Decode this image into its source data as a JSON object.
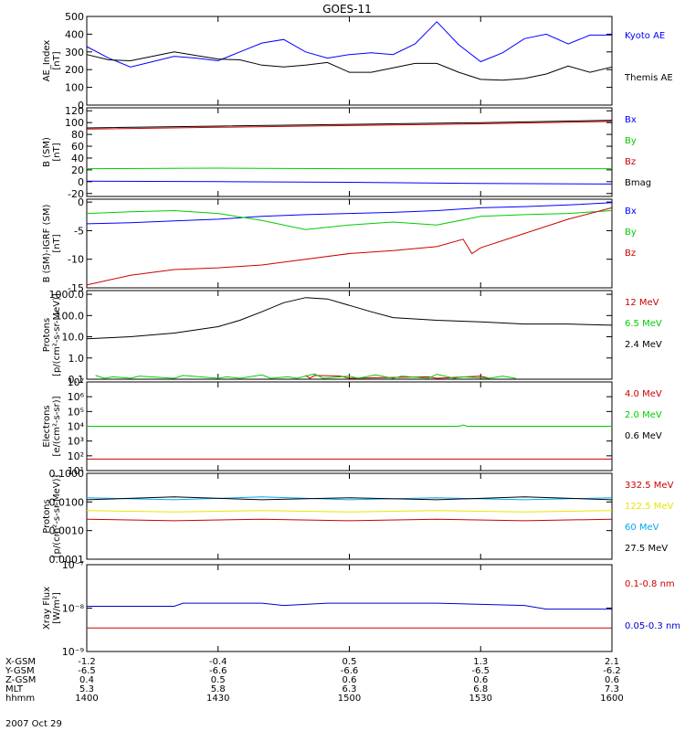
{
  "figure": {
    "title": "GOES-11",
    "date": "2007 Oct 29"
  },
  "chart_data": [
    {
      "type": "line",
      "ylabel": [
        "AE_Index",
        "[nT]"
      ],
      "ylim": [
        0,
        500
      ],
      "yticks": [
        0,
        100,
        200,
        300,
        400,
        500
      ],
      "ytick_labels": [
        "0",
        "100",
        "200",
        "300",
        "400",
        "500"
      ],
      "series": [
        {
          "name": "Kyoto AE",
          "color": "#0000ff",
          "x": [
            0,
            5,
            10,
            15,
            20,
            25,
            30,
            35,
            40,
            45,
            50,
            55,
            60,
            65,
            70,
            75,
            80,
            85,
            90,
            95,
            100,
            105,
            110,
            115,
            120
          ],
          "y": [
            330,
            265,
            215,
            245,
            275,
            265,
            250,
            300,
            350,
            370,
            300,
            265,
            285,
            295,
            285,
            345,
            470,
            340,
            245,
            295,
            375,
            400,
            345,
            395,
            395
          ]
        },
        {
          "name": "Themis AE",
          "color": "#000000",
          "x": [
            0,
            5,
            10,
            15,
            20,
            25,
            30,
            35,
            40,
            45,
            50,
            55,
            60,
            65,
            70,
            75,
            80,
            85,
            90,
            95,
            100,
            105,
            110,
            115,
            120
          ],
          "y": [
            285,
            255,
            250,
            275,
            300,
            280,
            260,
            255,
            225,
            215,
            225,
            240,
            185,
            185,
            210,
            235,
            235,
            185,
            145,
            140,
            150,
            175,
            220,
            185,
            215
          ]
        }
      ]
    },
    {
      "type": "line",
      "ylabel": [
        "B (SM)",
        "[nT]"
      ],
      "ylim": [
        -25,
        125
      ],
      "yticks": [
        -20,
        0,
        20,
        40,
        60,
        80,
        100,
        120
      ],
      "ytick_labels": [
        "-20",
        "0",
        "20",
        "40",
        "60",
        "80",
        "100",
        "120"
      ],
      "series": [
        {
          "name": "Bx",
          "color": "#0000ff",
          "x": [
            0,
            30,
            60,
            90,
            120
          ],
          "y": [
            1,
            0,
            -1,
            -3,
            -4
          ]
        },
        {
          "name": "By",
          "color": "#00cc00",
          "x": [
            0,
            30,
            60,
            90,
            120
          ],
          "y": [
            22,
            23,
            22,
            22,
            22
          ]
        },
        {
          "name": "Bz",
          "color": "#cc0000",
          "x": [
            0,
            30,
            60,
            90,
            120
          ],
          "y": [
            89,
            92,
            95,
            98,
            102
          ]
        },
        {
          "name": "Bmag",
          "color": "#000000",
          "x": [
            0,
            30,
            60,
            90,
            120
          ],
          "y": [
            91,
            94,
            97,
            100,
            104
          ]
        }
      ]
    },
    {
      "type": "line",
      "ylabel": [
        "B (SM)-IGRF (SM)",
        "[nT]"
      ],
      "ylim": [
        -15,
        0.5
      ],
      "yticks": [
        -15,
        -10,
        -5,
        0
      ],
      "ytick_labels": [
        "-15",
        "-10",
        "-5",
        "0"
      ],
      "series": [
        {
          "name": "Bx",
          "color": "#0000ff",
          "x": [
            0,
            10,
            20,
            30,
            40,
            50,
            60,
            70,
            80,
            90,
            100,
            110,
            120
          ],
          "y": [
            -3.8,
            -3.6,
            -3.3,
            -3.0,
            -2.5,
            -2.2,
            -2.0,
            -1.8,
            -1.5,
            -1.0,
            -0.8,
            -0.5,
            -0.1
          ]
        },
        {
          "name": "By",
          "color": "#00cc00",
          "x": [
            0,
            10,
            20,
            30,
            40,
            50,
            60,
            70,
            80,
            90,
            100,
            110,
            120
          ],
          "y": [
            -2.0,
            -1.7,
            -1.5,
            -2.0,
            -3.2,
            -4.8,
            -4.0,
            -3.5,
            -4.0,
            -2.5,
            -2.2,
            -2.0,
            -1.5
          ]
        },
        {
          "name": "Bz",
          "color": "#cc0000",
          "x": [
            0,
            10,
            20,
            30,
            40,
            50,
            60,
            70,
            80,
            86,
            88,
            90,
            100,
            110,
            120
          ],
          "y": [
            -14.5,
            -12.8,
            -11.8,
            -11.5,
            -11.0,
            -10.0,
            -9.0,
            -8.5,
            -7.8,
            -6.5,
            -9.0,
            -8.0,
            -5.5,
            -3.0,
            -1.0
          ]
        }
      ]
    },
    {
      "type": "line",
      "yscale": "log",
      "ylabel": [
        "Protons",
        "[p/(cm²-s-sr-MeV)]"
      ],
      "ylim": [
        0.1,
        1500
      ],
      "yticks": [
        0.1,
        1,
        10,
        100,
        1000
      ],
      "ytick_labels": [
        "0.1",
        "1.0",
        "10.0",
        "100.0",
        "1000.0"
      ],
      "series": [
        {
          "name": "12 MeV",
          "color": "#cc0000",
          "x": [
            50,
            51,
            52,
            58,
            60,
            78,
            80,
            90,
            92
          ],
          "y": [
            0.15,
            0.11,
            0.15,
            0.14,
            0.11,
            0.13,
            0.11,
            0.14,
            0.11
          ]
        },
        {
          "name": "6.5 MeV",
          "color": "#00cc00",
          "x": [
            2,
            4,
            6,
            10,
            12,
            20,
            22,
            30,
            32,
            35,
            40,
            42,
            46,
            48,
            52,
            54,
            60,
            62,
            66,
            70,
            72,
            78,
            80,
            84,
            86,
            92,
            95,
            98
          ],
          "y": [
            0.15,
            0.11,
            0.13,
            0.11,
            0.14,
            0.11,
            0.15,
            0.11,
            0.13,
            0.11,
            0.16,
            0.11,
            0.13,
            0.11,
            0.18,
            0.11,
            0.14,
            0.11,
            0.16,
            0.11,
            0.14,
            0.11,
            0.17,
            0.11,
            0.13,
            0.11,
            0.14,
            0.11
          ]
        },
        {
          "name": "2.4 MeV",
          "color": "#000000",
          "x": [
            0,
            10,
            20,
            30,
            35,
            40,
            45,
            50,
            55,
            60,
            65,
            70,
            80,
            90,
            100,
            110,
            120
          ],
          "y": [
            8,
            10,
            15,
            30,
            60,
            150,
            400,
            700,
            600,
            300,
            150,
            80,
            60,
            50,
            40,
            40,
            35
          ]
        }
      ]
    },
    {
      "type": "line",
      "yscale": "log",
      "ylabel": [
        "Electrons",
        "[e/(cm²-s-sr)]"
      ],
      "ylim": [
        10,
        10000000
      ],
      "yticks": [
        10,
        100,
        1000,
        10000,
        100000,
        1000000,
        10000000
      ],
      "ytick_labels": [
        "10¹",
        "10²",
        "10³",
        "10⁴",
        "10⁵",
        "10⁶",
        "10⁷"
      ],
      "series": [
        {
          "name": "4.0 MeV",
          "color": "#cc0000",
          "x": [
            0,
            120
          ],
          "y": [
            60,
            60
          ]
        },
        {
          "name": "2.0 MeV",
          "color": "#00cc00",
          "x": [
            0,
            85,
            86,
            87,
            120
          ],
          "y": [
            10000,
            10000,
            12000,
            10000,
            10000
          ]
        },
        {
          "name": "0.6 MeV",
          "color": "#000000",
          "x": [],
          "y": []
        }
      ]
    },
    {
      "type": "line",
      "yscale": "log",
      "ylabel": [
        "Protons",
        "[p/(cm²-s-sr-MeV)]"
      ],
      "ylim": [
        0.0001,
        0.1
      ],
      "yticks": [
        0.0001,
        0.001,
        0.01,
        0.1
      ],
      "ytick_labels": [
        "0.0001",
        "0.0010",
        "0.0100",
        "0.1000"
      ],
      "series": [
        {
          "name": "332.5 MeV",
          "color": "#cc0000",
          "x": [
            0,
            20,
            40,
            60,
            80,
            100,
            120
          ],
          "y": [
            0.0025,
            0.0022,
            0.0025,
            0.0022,
            0.0025,
            0.0022,
            0.0025
          ]
        },
        {
          "name": "122.5 MeV",
          "color": "#e6e600",
          "x": [
            0,
            20,
            40,
            60,
            80,
            100,
            120
          ],
          "y": [
            0.005,
            0.0045,
            0.005,
            0.0045,
            0.005,
            0.0045,
            0.005
          ]
        },
        {
          "name": "60 MeV",
          "color": "#00aaee",
          "x": [
            0,
            20,
            40,
            60,
            80,
            100,
            120
          ],
          "y": [
            0.014,
            0.012,
            0.015,
            0.012,
            0.014,
            0.012,
            0.014
          ]
        },
        {
          "name": "27.5 MeV",
          "color": "#000000",
          "x": [
            0,
            20,
            40,
            60,
            80,
            100,
            120
          ],
          "y": [
            0.012,
            0.015,
            0.012,
            0.014,
            0.012,
            0.015,
            0.012
          ]
        }
      ]
    },
    {
      "type": "line",
      "yscale": "log",
      "ylabel": [
        "Xray Flux",
        "[W/m²]"
      ],
      "ylim": [
        1e-09,
        1e-07
      ],
      "yticks": [
        1e-09,
        1e-08,
        1e-07
      ],
      "ytick_labels": [
        "10⁻⁹",
        "10⁻⁸",
        "10⁻⁷"
      ],
      "series": [
        {
          "name": "0.1-0.8 nm",
          "color": "#cc0000",
          "x": [
            0,
            120
          ],
          "y": [
            3.5e-09,
            3.5e-09
          ]
        },
        {
          "name": "0.05-0.3 nm",
          "color": "#0000cc",
          "x": [
            0,
            20,
            22,
            40,
            45,
            55,
            80,
            100,
            105,
            120
          ],
          "y": [
            1.1e-08,
            1.1e-08,
            1.3e-08,
            1.3e-08,
            1.15e-08,
            1.3e-08,
            1.3e-08,
            1.15e-08,
            9.5e-09,
            9.5e-09
          ]
        }
      ]
    }
  ],
  "ephemeris": {
    "row_labels": [
      "X-GSM",
      "Y-GSM",
      "Z-GSM",
      "MLT",
      "hhmm"
    ],
    "columns": [
      [
        "-1.2",
        "-6.5",
        "0.4",
        "5.3",
        "1400"
      ],
      [
        "-0.4",
        "-6.6",
        "0.5",
        "5.8",
        "1430"
      ],
      [
        "0.5",
        "-6.6",
        "0.6",
        "6.3",
        "1500"
      ],
      [
        "1.3",
        "-6.5",
        "0.6",
        "6.8",
        "1530"
      ],
      [
        "2.1",
        "-6.2",
        "0.6",
        "7.3",
        "1600"
      ]
    ]
  }
}
